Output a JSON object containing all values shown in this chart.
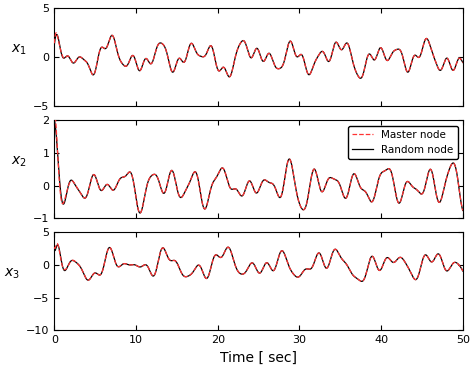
{
  "t_start": 0,
  "t_end": 50,
  "dt": 0.02,
  "xlim": [
    0,
    50
  ],
  "subplot1": {
    "ylabel": "x_1",
    "ylim": [
      -5,
      5
    ],
    "yticks": [
      -5,
      0,
      5
    ]
  },
  "subplot2": {
    "ylabel": "x_2",
    "ylim": [
      -1,
      2
    ],
    "yticks": [
      -1,
      0,
      1,
      2
    ],
    "legend": [
      "Master node",
      "Random node"
    ]
  },
  "subplot3": {
    "ylabel": "x_3",
    "ylim": [
      -10,
      5
    ],
    "yticks": [
      -10,
      -5,
      0,
      5
    ]
  },
  "xlabel": "Time [ sec]",
  "xticks": [
    0,
    10,
    20,
    30,
    40,
    50
  ],
  "master_color": "#ff3333",
  "master_lw": 0.9,
  "master_ls": "--",
  "random_color": "#000000",
  "random_lw": 0.9,
  "random_ls": "-",
  "background": "#ffffff",
  "figsize": [
    4.74,
    3.69
  ],
  "dpi": 100
}
